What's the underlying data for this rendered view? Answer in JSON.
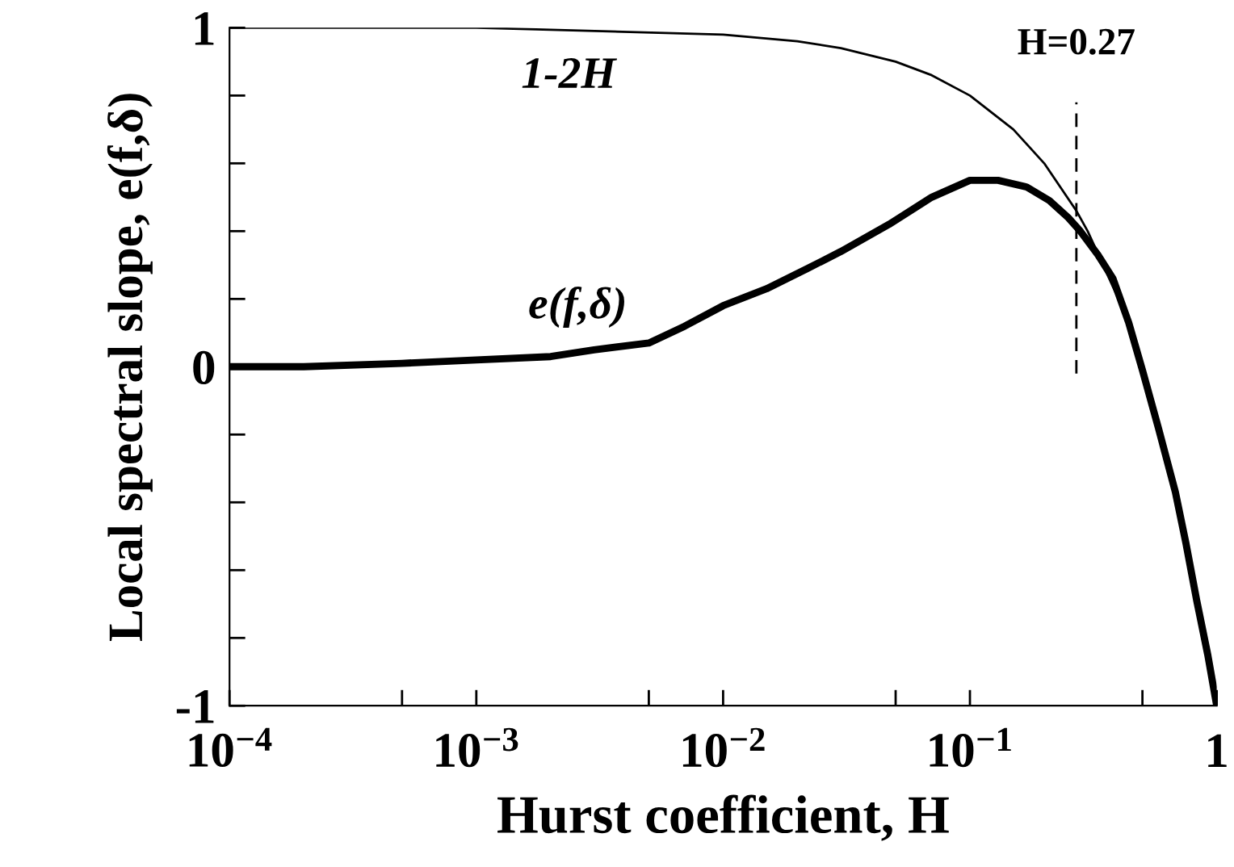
{
  "chart_data": {
    "type": "line",
    "xlabel": "Hurst coefficient, H",
    "ylabel": "Local spectral slope, e(f,δ)",
    "log": "x",
    "xlim": [
      0.0001,
      1
    ],
    "ylim": [
      -1,
      1
    ],
    "xticks": [
      {
        "value": 0.0001,
        "label": "10$^{−4}$"
      },
      {
        "value": 0.0005,
        "label": null
      },
      {
        "value": 0.001,
        "label": "10$^{−3}$"
      },
      {
        "value": 0.005,
        "label": null
      },
      {
        "value": 0.01,
        "label": "10$^{−2}$"
      },
      {
        "value": 0.05,
        "label": null
      },
      {
        "value": 0.1,
        "label": "10$^{−1}$"
      },
      {
        "value": 0.5,
        "label": null
      },
      {
        "value": 1,
        "label": "1"
      }
    ],
    "yticks": [
      -1,
      {
        "value": -0.8,
        "label": null
      },
      {
        "value": -0.6,
        "label": null
      },
      {
        "value": -0.4,
        "label": null
      },
      {
        "value": -0.2,
        "label": null
      },
      0,
      {
        "value": 0.2,
        "label": null
      },
      {
        "value": 0.4,
        "label": null
      },
      {
        "value": 0.6,
        "label": null
      },
      {
        "value": 0.8,
        "label": null
      },
      1
    ],
    "grid": false,
    "legend": false,
    "marker": "none",
    "line_style": "solid",
    "series": [
      {
        "name": "1-2H",
        "color": "#000000",
        "x": [
          0.0001,
          0.001,
          0.01,
          0.02,
          0.03,
          0.05,
          0.07,
          0.1,
          0.15,
          0.2,
          0.27,
          0.3,
          0.4,
          0.5,
          0.6,
          0.7,
          0.85,
          1
        ],
        "values": [
          1.0,
          1.0,
          0.98,
          0.96,
          0.94,
          0.9,
          0.86,
          0.8,
          0.7,
          0.6,
          0.46,
          0.4,
          0.2,
          0.0,
          -0.2,
          -0.4,
          -0.7,
          -1.0
        ]
      },
      {
        "name": "e(f,δ)",
        "color": "#000000",
        "x": [
          0.0001,
          0.0002,
          0.0005,
          0.001,
          0.002,
          0.003,
          0.005,
          0.007,
          0.01,
          0.015,
          0.022,
          0.03,
          0.047,
          0.07,
          0.1,
          0.13,
          0.17,
          0.21,
          0.25,
          0.28,
          0.33,
          0.38,
          0.44,
          0.5,
          0.58,
          0.68,
          0.75,
          0.83,
          0.92,
          1.0
        ],
        "values": [
          0.0,
          0.0,
          0.01,
          0.02,
          0.03,
          0.05,
          0.07,
          0.12,
          0.18,
          0.23,
          0.29,
          0.34,
          0.42,
          0.5,
          0.55,
          0.55,
          0.53,
          0.49,
          0.44,
          0.4,
          0.33,
          0.26,
          0.13,
          -0.01,
          -0.18,
          -0.37,
          -0.52,
          -0.69,
          -0.85,
          -1.0
        ]
      }
    ],
    "ref_lines": [
      {
        "axis": "x",
        "value": 0.27,
        "label": "H=0.27",
        "color": "#000000",
        "line_style": "dashed"
      }
    ]
  }
}
